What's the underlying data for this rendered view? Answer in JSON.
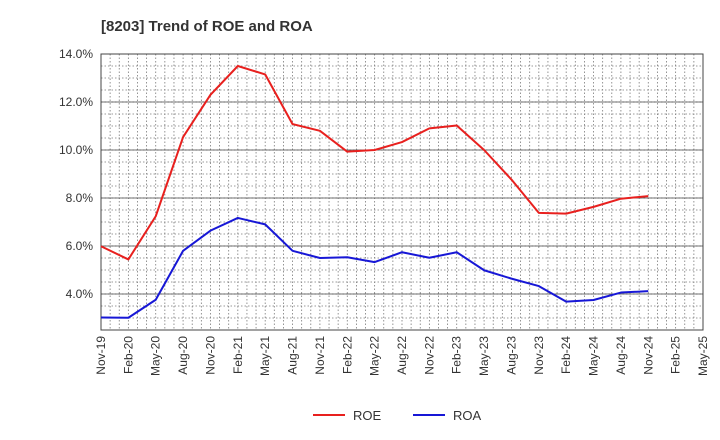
{
  "chart_data": {
    "type": "line",
    "title": "[8203]  Trend of ROE and ROA",
    "xlabel": "",
    "ylabel": "",
    "categories": [
      "Nov-19",
      "Feb-20",
      "May-20",
      "Aug-20",
      "Nov-20",
      "Feb-21",
      "May-21",
      "Aug-21",
      "Nov-21",
      "Feb-22",
      "May-22",
      "Aug-22",
      "Nov-22",
      "Feb-23",
      "May-23",
      "Aug-23",
      "Nov-23",
      "Feb-24",
      "May-24",
      "Aug-24",
      "Nov-24",
      "Feb-25",
      "May-25"
    ],
    "ylim": [
      2.5,
      14.0
    ],
    "yticks": [
      4.0,
      6.0,
      8.0,
      10.0,
      12.0,
      14.0
    ],
    "ytick_labels": [
      "4.0%",
      "6.0%",
      "8.0%",
      "10.0%",
      "12.0%",
      "14.0%"
    ],
    "grid": true,
    "legend_position": "bottom-center",
    "series": [
      {
        "name": "ROE",
        "color": "#e8201e",
        "values": [
          5.99,
          5.44,
          7.24,
          10.54,
          12.3,
          13.5,
          13.15,
          11.08,
          10.8,
          9.93,
          10.0,
          10.33,
          10.9,
          11.02,
          10.0,
          8.77,
          7.38,
          7.35,
          7.63,
          7.97,
          8.08,
          null,
          null
        ]
      },
      {
        "name": "ROA",
        "color": "#1717d6",
        "values": [
          3.02,
          3.01,
          3.76,
          5.8,
          6.64,
          7.17,
          6.9,
          5.8,
          5.5,
          5.53,
          5.33,
          5.74,
          5.51,
          5.74,
          4.99,
          4.64,
          4.33,
          3.68,
          3.75,
          4.06,
          4.12,
          null,
          null
        ]
      }
    ]
  }
}
